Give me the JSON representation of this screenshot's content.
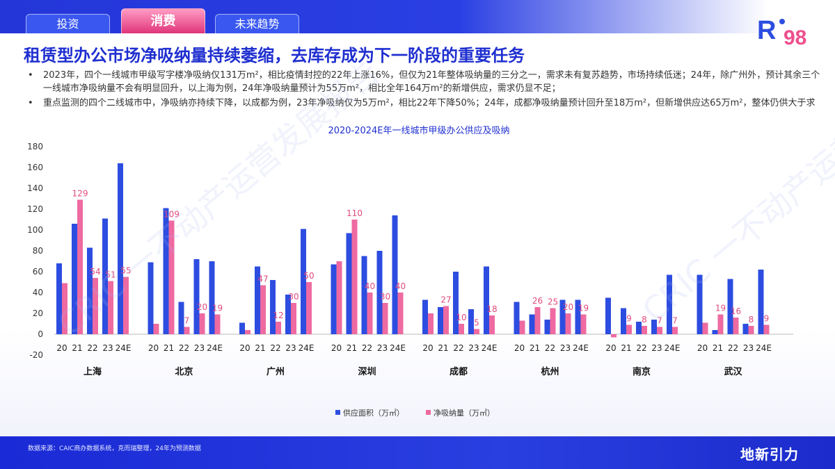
{
  "tabs": [
    {
      "label": "投资"
    },
    {
      "label": "消费"
    },
    {
      "label": "未来趋势"
    }
  ],
  "logo": {
    "text": "R",
    "accent": "98"
  },
  "title": "租赁型办公市场净吸纳量持续萎缩，去库存成为下一阶段的重要任务",
  "bullets": [
    "2023年，四个一线城市甲级写字楼净吸纳仅131万m²，相比疫情封控的22年上涨16%，但仅为21年整体吸纳量的三分之一，需求未有复苏趋势，市场持续低迷；24年，除广州外，预计其余三个一线城市净吸纳量不会有明显回升，以上海为例，24年净吸纳量预计为55万m²，相比全年164万m²的新增供应，需求仍显不足；",
    "重点监测的四个二线城市中，净吸纳亦持续下降，以成都为例，23年净吸纳仅为5万m²，相比22年下降50%；24年，成都净吸纳量预计回升至18万m²，但新增供应达65万m²，整体仍供大于求"
  ],
  "footer": {
    "note": "数据来源：CAIC商办数据系统，克而瑞整理，24年为预测数据",
    "brand": "地新引力"
  },
  "watermark": "CRIC 一不动产运营发展报告",
  "colors": {
    "supply": "#2d4de0",
    "absorb": "#ee6aa1",
    "title": "#1f2fd0",
    "label": "#e0497f"
  },
  "chart_data": {
    "type": "bar",
    "title": "2020-2024E年一线城市甲级办公供应及吸纳",
    "ylim": [
      -20,
      180
    ],
    "yticks": [
      -20,
      0,
      20,
      40,
      60,
      80,
      100,
      120,
      140,
      160,
      180
    ],
    "years": [
      "20",
      "21",
      "22",
      "23",
      "24E"
    ],
    "legend_position": "bottom-center",
    "series_names": [
      "供应面积（万㎡）",
      "净吸纳量（万㎡）"
    ],
    "cities": [
      {
        "name": "上海",
        "supply": [
          68,
          106,
          83,
          111,
          164
        ],
        "absorb": [
          49,
          129,
          54,
          51,
          55
        ]
      },
      {
        "name": "北京",
        "supply": [
          69,
          121,
          31,
          72,
          70
        ],
        "absorb": [
          10,
          109,
          7,
          20,
          19
        ]
      },
      {
        "name": "广州",
        "supply": [
          11,
          65,
          52,
          38,
          101
        ],
        "absorb": [
          4,
          47,
          12,
          30,
          50
        ]
      },
      {
        "name": "深圳",
        "supply": [
          67,
          97,
          75,
          80,
          114
        ],
        "absorb": [
          70,
          110,
          40,
          30,
          40
        ]
      },
      {
        "name": "成都",
        "supply": [
          33,
          26,
          60,
          24,
          65
        ],
        "absorb": [
          20,
          27,
          10,
          5,
          18
        ]
      },
      {
        "name": "杭州",
        "supply": [
          31,
          19,
          14,
          33,
          33
        ],
        "absorb": [
          13,
          26,
          25,
          20,
          19
        ]
      },
      {
        "name": "南京",
        "supply": [
          35,
          25,
          12,
          14,
          57
        ],
        "absorb": [
          -3,
          9,
          8,
          7,
          7
        ]
      },
      {
        "name": "武汉",
        "supply": [
          57,
          4,
          53,
          10,
          62
        ],
        "absorb": [
          11,
          19,
          16,
          8,
          9
        ]
      }
    ],
    "labels": {
      "上海": [
        "",
        "129",
        "54",
        "51",
        "55"
      ],
      "北京": [
        "",
        "109",
        "7",
        "20",
        "19"
      ],
      "广州": [
        "",
        "47",
        "12",
        "30",
        "50"
      ],
      "深圳": [
        "",
        "110",
        "40",
        "30",
        "40"
      ],
      "成都": [
        "",
        "27",
        "10",
        "5",
        "18"
      ],
      "杭州": [
        "",
        "26",
        "25",
        "20",
        "19"
      ],
      "南京": [
        "",
        "9",
        "8",
        "7",
        "7"
      ],
      "武汉": [
        "",
        "19",
        "16",
        "8",
        "9"
      ]
    }
  }
}
